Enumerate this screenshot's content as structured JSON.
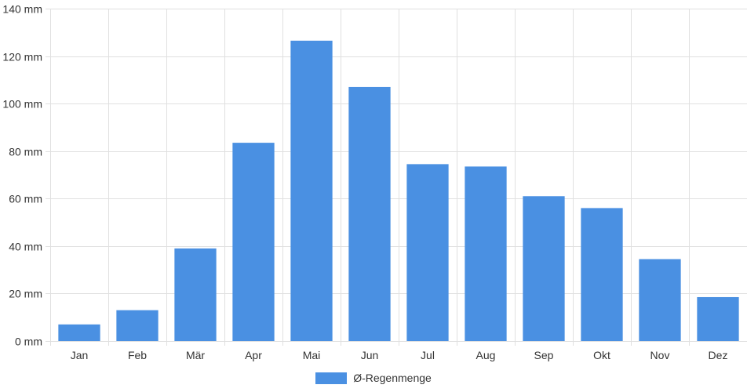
{
  "chart_data": {
    "type": "bar",
    "categories": [
      "Jan",
      "Feb",
      "Mär",
      "Apr",
      "Mai",
      "Jun",
      "Jul",
      "Aug",
      "Sep",
      "Okt",
      "Nov",
      "Dez"
    ],
    "series": [
      {
        "name": "Ø-Regenmenge",
        "values": [
          7,
          13,
          39,
          83.5,
          126.5,
          107,
          74.5,
          73.5,
          61,
          56,
          34.5,
          18.5
        ]
      }
    ],
    "ylim": [
      0,
      140
    ],
    "yticks": [
      0,
      20,
      40,
      60,
      80,
      100,
      120,
      140
    ],
    "ytick_suffix": " mm",
    "grid": true,
    "legend_position": "bottom-center",
    "colors": {
      "bar_fill": "#4a90e2",
      "grid": "#e0e0e0",
      "axis_text": "#333333"
    }
  }
}
